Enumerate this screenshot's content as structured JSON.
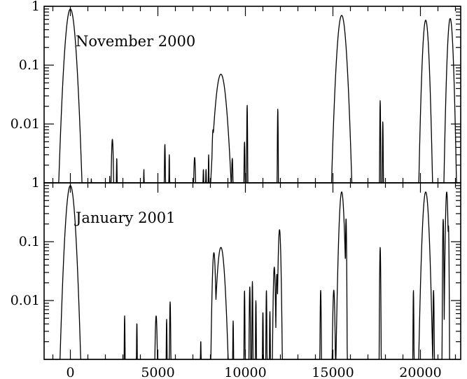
{
  "chart_data": [
    {
      "type": "line",
      "title": "November 2000",
      "xlabel": "",
      "ylabel": "",
      "y_scale": "log",
      "xlim": [
        -1500,
        22300
      ],
      "ylim": [
        0.001,
        1
      ],
      "x_ticks": [
        0,
        5000,
        10000,
        15000,
        20000
      ],
      "y_ticks": [
        0.01,
        0.1,
        1
      ],
      "y_tick_labels": [
        "0.01",
        "0.1",
        "1"
      ],
      "peaks": [
        {
          "x": 0,
          "y": 0.9,
          "w": 180
        },
        {
          "x": 200,
          "y": 0.0027,
          "w": 15
        },
        {
          "x": 1200,
          "y": 0.0012,
          "w": 12
        },
        {
          "x": 2250,
          "y": 0.0013,
          "w": 12
        },
        {
          "x": 2400,
          "y": 0.0055,
          "w": 40
        },
        {
          "x": 2650,
          "y": 0.0027,
          "w": 15
        },
        {
          "x": 4200,
          "y": 0.0017,
          "w": 15
        },
        {
          "x": 5400,
          "y": 0.0045,
          "w": 20
        },
        {
          "x": 5650,
          "y": 0.003,
          "w": 15
        },
        {
          "x": 7100,
          "y": 0.0027,
          "w": 40
        },
        {
          "x": 7600,
          "y": 0.0017,
          "w": 20
        },
        {
          "x": 7750,
          "y": 0.0017,
          "w": 20
        },
        {
          "x": 7900,
          "y": 0.003,
          "w": 15
        },
        {
          "x": 8150,
          "y": 0.008,
          "w": 40
        },
        {
          "x": 8300,
          "y": 0.016,
          "w": 30
        },
        {
          "x": 8600,
          "y": 0.07,
          "w": 200
        },
        {
          "x": 9250,
          "y": 0.0026,
          "w": 30
        },
        {
          "x": 9950,
          "y": 0.005,
          "w": 20
        },
        {
          "x": 10100,
          "y": 0.021,
          "w": 15
        },
        {
          "x": 11850,
          "y": 0.018,
          "w": 15
        },
        {
          "x": 15500,
          "y": 0.7,
          "w": 160
        },
        {
          "x": 17700,
          "y": 0.025,
          "w": 15
        },
        {
          "x": 17850,
          "y": 0.011,
          "w": 15
        },
        {
          "x": 20300,
          "y": 0.58,
          "w": 110
        },
        {
          "x": 21700,
          "y": 0.62,
          "w": 100
        }
      ]
    },
    {
      "type": "line",
      "title": "January 2001",
      "xlabel": "",
      "ylabel": "",
      "y_scale": "log",
      "xlim": [
        -1500,
        22300
      ],
      "ylim": [
        0.001,
        1
      ],
      "x_ticks": [
        0,
        5000,
        10000,
        15000,
        20000
      ],
      "x_tick_labels": [
        "0",
        "5000",
        "10000",
        "15000",
        "20000"
      ],
      "y_ticks": [
        0.01,
        0.1,
        1
      ],
      "y_tick_labels": [
        "0.01",
        "0.1",
        "1"
      ],
      "peaks": [
        {
          "x": -200,
          "y": 0.0055,
          "w": 20
        },
        {
          "x": 0,
          "y": 0.9,
          "w": 160
        },
        {
          "x": 3100,
          "y": 0.0055,
          "w": 15
        },
        {
          "x": 3800,
          "y": 0.0042,
          "w": 15
        },
        {
          "x": 4900,
          "y": 0.0055,
          "w": 40
        },
        {
          "x": 5500,
          "y": 0.0048,
          "w": 15
        },
        {
          "x": 5700,
          "y": 0.0095,
          "w": 20
        },
        {
          "x": 7450,
          "y": 0.0021,
          "w": 15
        },
        {
          "x": 8200,
          "y": 0.065,
          "w": 60
        },
        {
          "x": 8600,
          "y": 0.08,
          "w": 140
        },
        {
          "x": 8950,
          "y": 0.0026,
          "w": 15
        },
        {
          "x": 9300,
          "y": 0.0045,
          "w": 15
        },
        {
          "x": 9950,
          "y": 0.015,
          "w": 15
        },
        {
          "x": 10250,
          "y": 0.017,
          "w": 20
        },
        {
          "x": 10400,
          "y": 0.021,
          "w": 15
        },
        {
          "x": 10600,
          "y": 0.01,
          "w": 15
        },
        {
          "x": 11000,
          "y": 0.0065,
          "w": 15
        },
        {
          "x": 11200,
          "y": 0.015,
          "w": 15
        },
        {
          "x": 11400,
          "y": 0.0065,
          "w": 15
        },
        {
          "x": 11650,
          "y": 0.037,
          "w": 40
        },
        {
          "x": 11800,
          "y": 0.028,
          "w": 30
        },
        {
          "x": 11950,
          "y": 0.16,
          "w": 50
        },
        {
          "x": 14300,
          "y": 0.015,
          "w": 20
        },
        {
          "x": 15050,
          "y": 0.015,
          "w": 40
        },
        {
          "x": 15250,
          "y": 0.01,
          "w": 15
        },
        {
          "x": 15500,
          "y": 0.7,
          "w": 90
        },
        {
          "x": 15750,
          "y": 0.25,
          "w": 20
        },
        {
          "x": 17700,
          "y": 0.08,
          "w": 20
        },
        {
          "x": 19600,
          "y": 0.015,
          "w": 15
        },
        {
          "x": 20300,
          "y": 0.7,
          "w": 110
        },
        {
          "x": 20750,
          "y": 0.015,
          "w": 20
        },
        {
          "x": 21300,
          "y": 0.24,
          "w": 20
        },
        {
          "x": 21500,
          "y": 0.7,
          "w": 45
        },
        {
          "x": 21600,
          "y": 0.19,
          "w": 20
        }
      ]
    }
  ]
}
